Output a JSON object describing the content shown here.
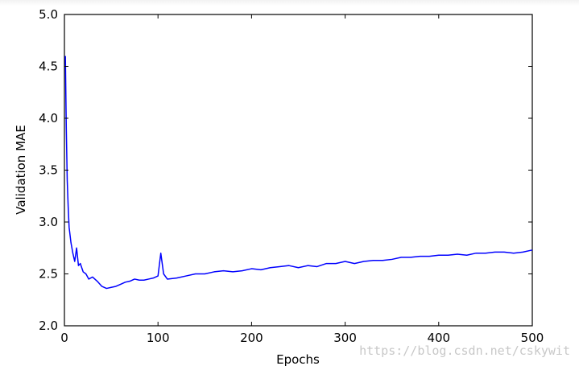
{
  "chart_data": {
    "type": "line",
    "title": "",
    "xlabel": "Epochs",
    "ylabel": "Validation MAE",
    "xlim": [
      0,
      500
    ],
    "ylim": [
      2.0,
      5.0
    ],
    "x_ticks": [
      "0",
      "100",
      "200",
      "300",
      "400",
      "500"
    ],
    "y_ticks": [
      "2.0",
      "2.5",
      "3.0",
      "3.5",
      "4.0",
      "4.5",
      "5.0"
    ],
    "grid": false,
    "legend": "none",
    "series": [
      {
        "color": "#0000ff",
        "x": [
          1,
          2,
          3,
          4,
          5,
          7,
          9,
          11,
          13,
          15,
          17,
          20,
          23,
          26,
          30,
          35,
          40,
          45,
          50,
          55,
          60,
          65,
          70,
          75,
          80,
          85,
          90,
          95,
          100,
          103,
          106,
          110,
          120,
          130,
          140,
          150,
          160,
          170,
          180,
          190,
          200,
          210,
          220,
          230,
          240,
          250,
          260,
          270,
          280,
          290,
          300,
          310,
          320,
          330,
          340,
          350,
          360,
          370,
          380,
          390,
          400,
          410,
          420,
          430,
          440,
          450,
          460,
          470,
          480,
          490,
          500
        ],
        "y": [
          4.6,
          3.9,
          3.4,
          3.15,
          2.95,
          2.8,
          2.7,
          2.62,
          2.75,
          2.58,
          2.6,
          2.52,
          2.5,
          2.45,
          2.47,
          2.43,
          2.38,
          2.36,
          2.37,
          2.38,
          2.4,
          2.42,
          2.43,
          2.45,
          2.44,
          2.44,
          2.45,
          2.46,
          2.48,
          2.7,
          2.5,
          2.45,
          2.46,
          2.48,
          2.5,
          2.5,
          2.52,
          2.53,
          2.52,
          2.53,
          2.55,
          2.54,
          2.56,
          2.57,
          2.58,
          2.56,
          2.58,
          2.57,
          2.6,
          2.6,
          2.62,
          2.6,
          2.62,
          2.63,
          2.63,
          2.64,
          2.66,
          2.66,
          2.67,
          2.67,
          2.68,
          2.68,
          2.69,
          2.68,
          2.7,
          2.7,
          2.71,
          2.71,
          2.7,
          2.71,
          2.73
        ]
      }
    ]
  },
  "watermark": "https://blog.csdn.net/cskywit"
}
